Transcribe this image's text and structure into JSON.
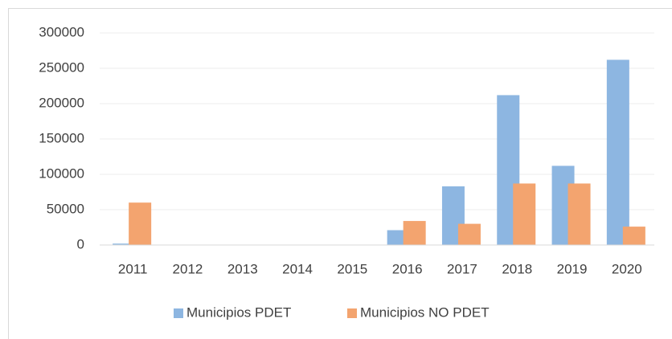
{
  "chart_data": {
    "type": "bar",
    "categories": [
      "2011",
      "2012",
      "2013",
      "2014",
      "2015",
      "2016",
      "2017",
      "2018",
      "2019",
      "2020"
    ],
    "series": [
      {
        "name": "Municipios PDET",
        "color": "#8db6e1",
        "values": [
          2000,
          0,
          0,
          0,
          0,
          21000,
          83000,
          212000,
          112000,
          262000
        ]
      },
      {
        "name": "Municipios NO PDET",
        "color": "#f3a46f",
        "values": [
          60000,
          0,
          0,
          0,
          0,
          34000,
          30000,
          87000,
          87000,
          26000
        ]
      }
    ],
    "ylim": [
      0,
      300000
    ],
    "yticks": [
      0,
      50000,
      100000,
      150000,
      200000,
      250000,
      300000
    ],
    "grid": true,
    "legend": "bottom"
  }
}
